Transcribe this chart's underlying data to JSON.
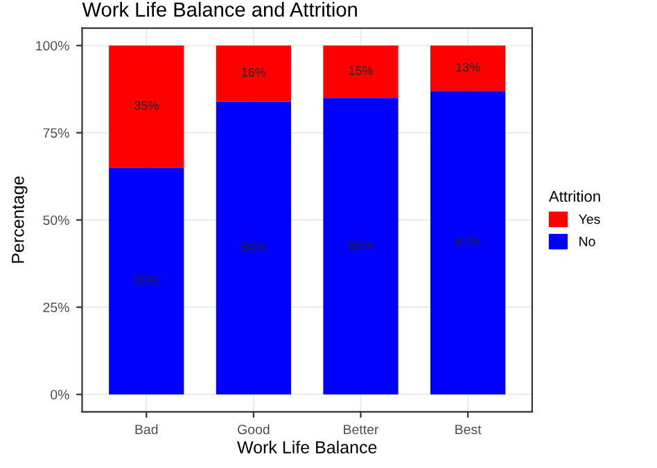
{
  "chart_data": {
    "type": "bar",
    "title": "Work Life Balance and Attrition",
    "xlabel": "Work Life Balance",
    "ylabel": "Percentage",
    "legend_title": "Attrition",
    "categories": [
      "Bad",
      "Good",
      "Better",
      "Best"
    ],
    "stacked": true,
    "series": [
      {
        "name": "No",
        "color": "#0000ff",
        "values": [
          65,
          84,
          85,
          87
        ],
        "value_labels": [
          "65%",
          "84%",
          "85%",
          "87%"
        ]
      },
      {
        "name": "Yes",
        "color": "#ff0000",
        "values": [
          35,
          16,
          15,
          13
        ],
        "value_labels": [
          "35%",
          "16%",
          "15%",
          "13%"
        ]
      }
    ],
    "ylim": [
      -5,
      105
    ],
    "yticks": [
      {
        "value": 0,
        "label": "0%"
      },
      {
        "value": 25,
        "label": "25%"
      },
      {
        "value": 50,
        "label": "50%"
      },
      {
        "value": 75,
        "label": "75%"
      },
      {
        "value": 100,
        "label": "100%"
      }
    ],
    "grid": true,
    "legend": "right"
  }
}
